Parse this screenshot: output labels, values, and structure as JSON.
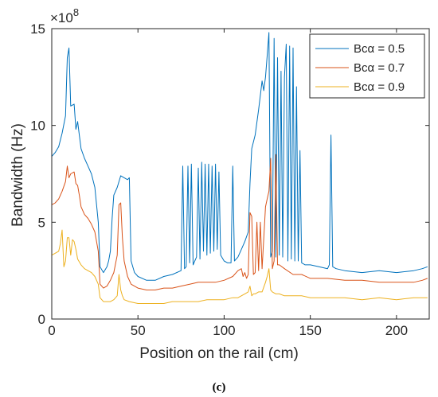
{
  "chart_data": {
    "type": "line",
    "xlabel": "Position on the rail (cm)",
    "ylabel": "Bandwidth (Hz)",
    "exponent_label": "×10",
    "exponent_power": "8",
    "panel_label": "(c)",
    "xlim": [
      0,
      219
    ],
    "ylim": [
      0,
      15
    ],
    "xticks": [
      0,
      50,
      100,
      150,
      200
    ],
    "yticks": [
      0,
      5,
      10,
      15
    ],
    "y_scale_note": "values in units of 1e8 Hz",
    "grid": false,
    "legend_position": "top-right",
    "series": [
      {
        "name": "Bcα = 0.5",
        "color": "#0072BD",
        "points": [
          [
            0,
            8.4
          ],
          [
            2,
            8.6
          ],
          [
            4,
            8.9
          ],
          [
            6,
            9.6
          ],
          [
            8,
            10.5
          ],
          [
            9,
            13.5
          ],
          [
            10,
            14.0
          ],
          [
            11,
            11.0
          ],
          [
            13,
            11.1
          ],
          [
            14,
            9.8
          ],
          [
            15,
            10.2
          ],
          [
            16,
            9.5
          ],
          [
            17,
            8.8
          ],
          [
            19,
            8.3
          ],
          [
            21,
            7.9
          ],
          [
            23,
            7.5
          ],
          [
            25,
            6.8
          ],
          [
            27,
            5.0
          ],
          [
            28,
            2.7
          ],
          [
            30,
            2.4
          ],
          [
            32,
            2.7
          ],
          [
            33,
            3.0
          ],
          [
            34,
            3.5
          ],
          [
            35,
            5.2
          ],
          [
            36,
            6.4
          ],
          [
            38,
            6.8
          ],
          [
            40,
            7.4
          ],
          [
            42,
            7.3
          ],
          [
            44,
            7.2
          ],
          [
            45,
            7.3
          ],
          [
            46,
            3.0
          ],
          [
            48,
            2.4
          ],
          [
            50,
            2.2
          ],
          [
            55,
            2.0
          ],
          [
            60,
            2.0
          ],
          [
            65,
            2.2
          ],
          [
            70,
            2.3
          ],
          [
            75,
            2.5
          ],
          [
            76,
            7.9
          ],
          [
            77,
            2.6
          ],
          [
            78,
            2.7
          ],
          [
            79,
            7.9
          ],
          [
            80,
            2.9
          ],
          [
            81,
            8.0
          ],
          [
            82,
            2.8
          ],
          [
            83,
            3.0
          ],
          [
            84,
            3.2
          ],
          [
            85,
            7.8
          ],
          [
            86,
            3.1
          ],
          [
            87,
            8.1
          ],
          [
            88,
            3.5
          ],
          [
            89,
            8.0
          ],
          [
            90,
            3.3
          ],
          [
            91,
            8.0
          ],
          [
            92,
            3.4
          ],
          [
            93,
            7.9
          ],
          [
            94,
            3.5
          ],
          [
            95,
            8.0
          ],
          [
            96,
            3.6
          ],
          [
            97,
            7.6
          ],
          [
            98,
            3.3
          ],
          [
            100,
            3.0
          ],
          [
            102,
            2.9
          ],
          [
            104,
            2.9
          ],
          [
            105,
            7.9
          ],
          [
            106,
            3.0
          ],
          [
            108,
            3.2
          ],
          [
            110,
            3.6
          ],
          [
            112,
            4.0
          ],
          [
            114,
            4.5
          ],
          [
            115,
            7.0
          ],
          [
            116,
            8.8
          ],
          [
            118,
            9.5
          ],
          [
            120,
            10.8
          ],
          [
            122,
            12.3
          ],
          [
            123,
            11.8
          ],
          [
            124,
            12.5
          ],
          [
            125,
            13.6
          ],
          [
            126,
            14.8
          ],
          [
            127,
            3.2
          ],
          [
            128,
            3.5
          ],
          [
            129,
            14.5
          ],
          [
            130,
            3.2
          ],
          [
            131,
            13.5
          ],
          [
            132,
            3.3
          ],
          [
            133,
            12.8
          ],
          [
            134,
            3.2
          ],
          [
            135,
            12.5
          ],
          [
            136,
            14.2
          ],
          [
            137,
            3.0
          ],
          [
            138,
            14.1
          ],
          [
            139,
            3.1
          ],
          [
            140,
            14.0
          ],
          [
            141,
            3.0
          ],
          [
            142,
            12.0
          ],
          [
            143,
            3.0
          ],
          [
            144,
            8.7
          ],
          [
            145,
            2.9
          ],
          [
            147,
            2.8
          ],
          [
            150,
            2.8
          ],
          [
            155,
            2.7
          ],
          [
            160,
            2.6
          ],
          [
            161,
            2.8
          ],
          [
            162,
            9.5
          ],
          [
            163,
            2.7
          ],
          [
            165,
            2.6
          ],
          [
            170,
            2.5
          ],
          [
            180,
            2.4
          ],
          [
            190,
            2.5
          ],
          [
            200,
            2.4
          ],
          [
            210,
            2.5
          ],
          [
            215,
            2.6
          ],
          [
            218,
            2.7
          ]
        ]
      },
      {
        "name": "Bcα = 0.7",
        "color": "#D95319",
        "points": [
          [
            0,
            5.9
          ],
          [
            2,
            6.0
          ],
          [
            4,
            6.2
          ],
          [
            6,
            6.6
          ],
          [
            8,
            7.1
          ],
          [
            9,
            7.9
          ],
          [
            10,
            7.3
          ],
          [
            11,
            7.5
          ],
          [
            13,
            7.6
          ],
          [
            14,
            7.0
          ],
          [
            15,
            6.9
          ],
          [
            16,
            6.4
          ],
          [
            17,
            5.8
          ],
          [
            19,
            5.4
          ],
          [
            21,
            5.2
          ],
          [
            23,
            4.9
          ],
          [
            25,
            4.5
          ],
          [
            27,
            3.5
          ],
          [
            28,
            1.8
          ],
          [
            30,
            1.6
          ],
          [
            32,
            1.7
          ],
          [
            34,
            2.0
          ],
          [
            36,
            2.4
          ],
          [
            38,
            3.3
          ],
          [
            39,
            5.9
          ],
          [
            40,
            6.0
          ],
          [
            41,
            4.2
          ],
          [
            42,
            3.0
          ],
          [
            44,
            2.2
          ],
          [
            46,
            1.8
          ],
          [
            50,
            1.6
          ],
          [
            55,
            1.5
          ],
          [
            60,
            1.5
          ],
          [
            65,
            1.6
          ],
          [
            70,
            1.6
          ],
          [
            75,
            1.7
          ],
          [
            80,
            1.8
          ],
          [
            85,
            1.9
          ],
          [
            90,
            1.9
          ],
          [
            95,
            1.9
          ],
          [
            100,
            2.0
          ],
          [
            105,
            2.2
          ],
          [
            108,
            2.5
          ],
          [
            110,
            2.6
          ],
          [
            111,
            2.2
          ],
          [
            112,
            2.4
          ],
          [
            113,
            2.1
          ],
          [
            114,
            2.3
          ],
          [
            115,
            5.5
          ],
          [
            116,
            5.3
          ],
          [
            117,
            2.3
          ],
          [
            118,
            2.4
          ],
          [
            119,
            5.0
          ],
          [
            120,
            2.5
          ],
          [
            121,
            5.0
          ],
          [
            122,
            2.6
          ],
          [
            124,
            5.8
          ],
          [
            125,
            6.2
          ],
          [
            126,
            6.6
          ],
          [
            127,
            8.3
          ],
          [
            128,
            2.6
          ],
          [
            129,
            3.0
          ],
          [
            130,
            8.5
          ],
          [
            131,
            2.8
          ],
          [
            132,
            2.8
          ],
          [
            135,
            2.6
          ],
          [
            140,
            2.3
          ],
          [
            145,
            2.3
          ],
          [
            150,
            2.1
          ],
          [
            160,
            2.1
          ],
          [
            170,
            2.0
          ],
          [
            180,
            2.0
          ],
          [
            190,
            1.9
          ],
          [
            200,
            1.9
          ],
          [
            210,
            1.9
          ],
          [
            215,
            2.0
          ],
          [
            218,
            2.1
          ]
        ]
      },
      {
        "name": "Bcα = 0.9",
        "color": "#EDB120",
        "points": [
          [
            0,
            3.3
          ],
          [
            2,
            3.4
          ],
          [
            4,
            3.5
          ],
          [
            5,
            3.9
          ],
          [
            6,
            4.6
          ],
          [
            7,
            2.7
          ],
          [
            8,
            3.0
          ],
          [
            9,
            4.2
          ],
          [
            10,
            4.2
          ],
          [
            11,
            3.3
          ],
          [
            12,
            4.1
          ],
          [
            13,
            4.0
          ],
          [
            14,
            3.6
          ],
          [
            15,
            3.1
          ],
          [
            17,
            2.8
          ],
          [
            19,
            2.6
          ],
          [
            21,
            2.5
          ],
          [
            23,
            2.4
          ],
          [
            25,
            2.2
          ],
          [
            27,
            1.8
          ],
          [
            28,
            1.1
          ],
          [
            30,
            0.9
          ],
          [
            32,
            0.9
          ],
          [
            34,
            0.9
          ],
          [
            36,
            1.0
          ],
          [
            38,
            1.2
          ],
          [
            39,
            2.3
          ],
          [
            40,
            1.5
          ],
          [
            41,
            1.2
          ],
          [
            42,
            1.0
          ],
          [
            45,
            0.9
          ],
          [
            50,
            0.8
          ],
          [
            55,
            0.8
          ],
          [
            60,
            0.8
          ],
          [
            65,
            0.8
          ],
          [
            70,
            0.9
          ],
          [
            75,
            0.9
          ],
          [
            80,
            0.9
          ],
          [
            85,
            0.9
          ],
          [
            90,
            1.0
          ],
          [
            95,
            1.0
          ],
          [
            100,
            1.0
          ],
          [
            105,
            1.1
          ],
          [
            108,
            1.1
          ],
          [
            110,
            1.2
          ],
          [
            112,
            1.3
          ],
          [
            114,
            1.4
          ],
          [
            115,
            1.7
          ],
          [
            116,
            1.2
          ],
          [
            117,
            1.3
          ],
          [
            118,
            1.3
          ],
          [
            120,
            1.4
          ],
          [
            122,
            1.4
          ],
          [
            124,
            1.9
          ],
          [
            125,
            2.2
          ],
          [
            126,
            2.6
          ],
          [
            127,
            1.5
          ],
          [
            128,
            1.4
          ],
          [
            130,
            1.3
          ],
          [
            132,
            1.3
          ],
          [
            135,
            1.2
          ],
          [
            140,
            1.2
          ],
          [
            145,
            1.2
          ],
          [
            150,
            1.1
          ],
          [
            160,
            1.1
          ],
          [
            170,
            1.1
          ],
          [
            180,
            1.0
          ],
          [
            190,
            1.1
          ],
          [
            200,
            1.0
          ],
          [
            210,
            1.1
          ],
          [
            215,
            1.1
          ],
          [
            218,
            1.1
          ]
        ]
      }
    ]
  }
}
